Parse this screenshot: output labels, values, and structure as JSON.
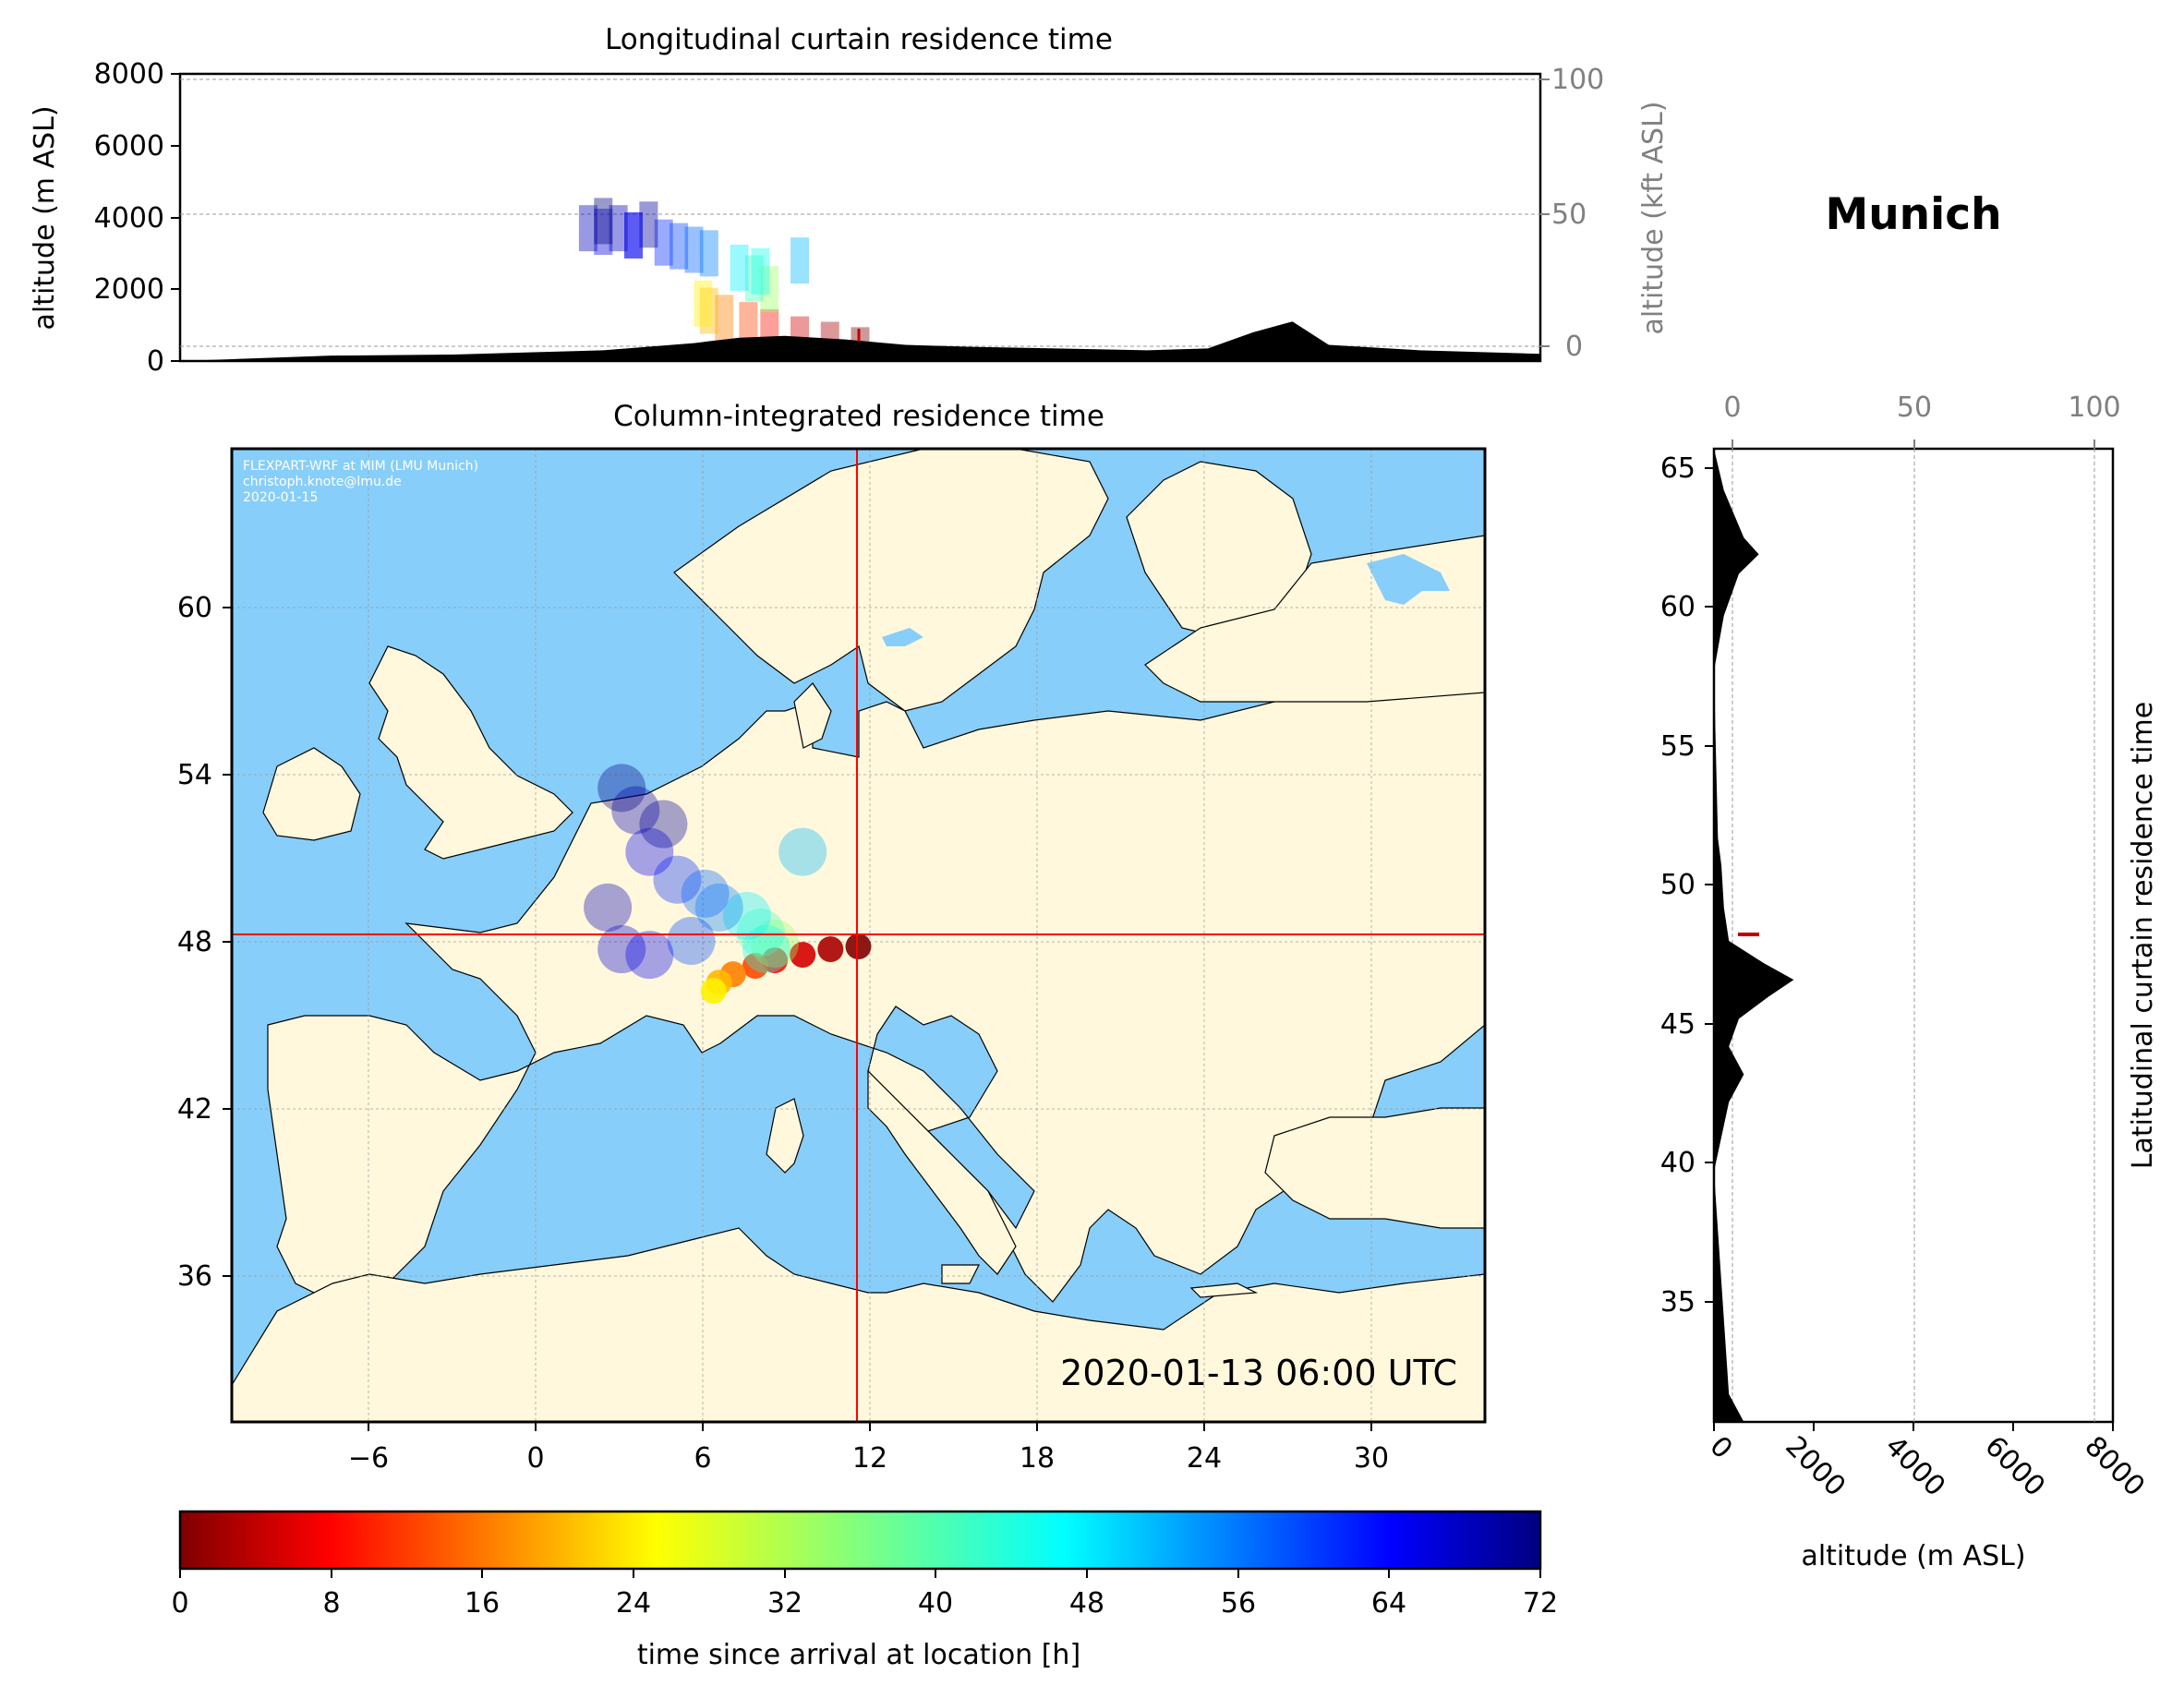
{
  "figure": {
    "location_name": "Munich",
    "timestamp": "2020-01-13 06:00 UTC",
    "watermark_lines": [
      "FLEXPART-WRF at MIM (LMU Munich)",
      "christoph.knote@lmu.de",
      "2020-01-15"
    ],
    "colors": {
      "ocean": "#87cefa",
      "land": "#fff8dc",
      "marker": "#ff0000",
      "terrain": "#000000"
    },
    "release_point": {
      "lon": 11.6,
      "lat": 48.1
    }
  },
  "longitudinal_panel": {
    "title": "Longitudinal curtain residence time",
    "ylabel": "altitude (m ASL)",
    "y2label": "altitude (kft ASL)",
    "yticks": [
      "0",
      "2000",
      "4000",
      "6000",
      "8000"
    ],
    "y2ticks": [
      "0",
      "50",
      "100"
    ]
  },
  "map_panel": {
    "title": "Column-integrated residence time",
    "xticks": [
      "−6",
      "0",
      "6",
      "12",
      "18",
      "24",
      "30"
    ],
    "yticks": [
      "36",
      "42",
      "48",
      "54",
      "60"
    ]
  },
  "latitudinal_panel": {
    "ylabel": "Latitudinal curtain residence time",
    "xlabel": "altitude (m ASL)",
    "top_ticks": [
      "0",
      "50",
      "100"
    ],
    "bottom_ticks": [
      "0",
      "2000",
      "4000",
      "6000",
      "8000"
    ],
    "yticks": [
      "35",
      "40",
      "45",
      "50",
      "55",
      "60",
      "65"
    ]
  },
  "colorbar": {
    "label": "time since arrival at location [h]",
    "ticks": [
      "0",
      "8",
      "16",
      "24",
      "32",
      "40",
      "48",
      "56",
      "64",
      "72"
    ],
    "colormap": "jet_r"
  },
  "chart_data": {
    "type": "heatmap",
    "map_extent": {
      "lon": [
        -11,
        34
      ],
      "lat": [
        31,
        66
      ]
    },
    "plume_points": [
      [
        11.5,
        48.1,
        0
      ],
      [
        10.5,
        48.0,
        3
      ],
      [
        9.5,
        47.8,
        6
      ],
      [
        8.5,
        47.6,
        10
      ],
      [
        7.8,
        47.4,
        14
      ],
      [
        7.0,
        47.1,
        18
      ],
      [
        6.5,
        46.8,
        22
      ],
      [
        6.3,
        46.5,
        26
      ],
      [
        8.5,
        48.2,
        34
      ],
      [
        8.0,
        48.6,
        40
      ],
      [
        7.5,
        49.2,
        46
      ],
      [
        8.2,
        48.0,
        44
      ],
      [
        6.5,
        49.5,
        54
      ],
      [
        5.0,
        50.5,
        60
      ],
      [
        4.0,
        51.5,
        64
      ],
      [
        3.5,
        53.0,
        68
      ],
      [
        3.0,
        48.0,
        66
      ],
      [
        2.5,
        49.5,
        68
      ],
      [
        4.5,
        52.5,
        70
      ],
      [
        3.0,
        53.8,
        72
      ],
      [
        5.5,
        48.3,
        58
      ],
      [
        4.0,
        47.8,
        64
      ],
      [
        6.0,
        50.0,
        56
      ],
      [
        9.5,
        51.5,
        50
      ]
    ],
    "latitudinal_terrain": [
      [
        31.0,
        600
      ],
      [
        32.0,
        300
      ],
      [
        40.0,
        0
      ],
      [
        42.5,
        300
      ],
      [
        43.5,
        600
      ],
      [
        44.5,
        300
      ],
      [
        45.5,
        500
      ],
      [
        46.3,
        1100
      ],
      [
        46.9,
        1600
      ],
      [
        47.5,
        1000
      ],
      [
        48.3,
        300
      ],
      [
        49.5,
        200
      ],
      [
        51.0,
        150
      ],
      [
        52.0,
        80
      ],
      [
        58.0,
        0
      ],
      [
        60.0,
        200
      ],
      [
        61.5,
        500
      ],
      [
        62.2,
        900
      ],
      [
        62.8,
        600
      ],
      [
        64.5,
        200
      ],
      [
        66.0,
        0
      ]
    ],
    "longitudinal_terrain": [
      [
        -11,
        0
      ],
      [
        -6,
        150
      ],
      [
        -2,
        180
      ],
      [
        3,
        300
      ],
      [
        6,
        500
      ],
      [
        7.5,
        650
      ],
      [
        9,
        700
      ],
      [
        11,
        600
      ],
      [
        13,
        450
      ],
      [
        15,
        400
      ],
      [
        18,
        350
      ],
      [
        21,
        300
      ],
      [
        23,
        350
      ],
      [
        24.5,
        800
      ],
      [
        25.8,
        1100
      ],
      [
        27,
        450
      ],
      [
        30,
        300
      ],
      [
        34,
        200
      ]
    ]
  }
}
